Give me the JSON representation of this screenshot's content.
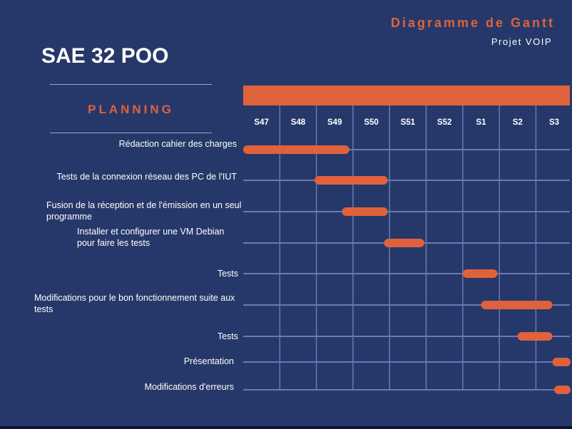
{
  "header": {
    "title": "Diagramme de Gantt",
    "subtitle": "Projet VOIP"
  },
  "project_title": "SAE 32 POO",
  "section_title": "PLANNING",
  "colors": {
    "background": "#263869",
    "accent": "#e0623c",
    "grid": "#6a78b4",
    "text": "#ffffff"
  },
  "chart_data": {
    "type": "gantt",
    "categories": [
      "S47",
      "S48",
      "S49",
      "S50",
      "S51",
      "S52",
      "S1",
      "S2",
      "S3"
    ],
    "tasks": [
      {
        "label": "Rédaction cahier des charges",
        "start": 0,
        "end": 2.9
      },
      {
        "label": "Tests de la connexion réseau des PC de l'IUT",
        "start": 1.95,
        "end": 3.95
      },
      {
        "label": "Fusion de la réception et de l'émission en un seul programme",
        "start": 2.7,
        "end": 3.95
      },
      {
        "label": "Installer et configurer une VM Debian pour faire les tests",
        "start": 3.85,
        "end": 4.95
      },
      {
        "label": "Tests",
        "start": 6.0,
        "end": 6.95
      },
      {
        "label": "Modifications pour le bon fonctionnement suite aux tests",
        "start": 6.5,
        "end": 8.45
      },
      {
        "label": "Tests",
        "start": 7.5,
        "end": 8.45
      },
      {
        "label": "Présentation",
        "start": 8.45,
        "end": 8.95
      },
      {
        "label": "Modifications d'erreurs",
        "start": 8.5,
        "end": 9.05
      }
    ]
  }
}
